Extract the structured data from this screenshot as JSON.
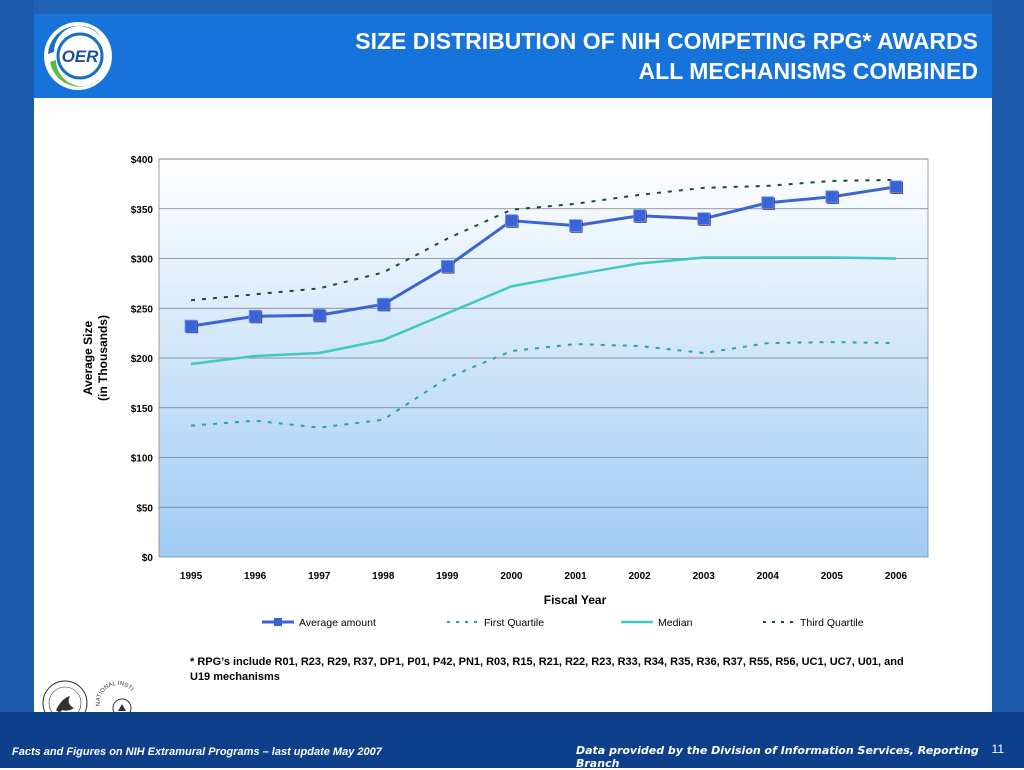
{
  "slide": {
    "title_line1": "SIZE DISTRIBUTION OF NIH COMPETING RPG* AWARDS",
    "title_line2": "ALL MECHANISMS COMBINED",
    "logo_text": "OER",
    "footnote": "* RPG’s include R01, R23, R29, R37, DP1, P01, P42, PN1, R03, R15, R21, R22, R23, R33, R34, R35, R36, R37, R55, R56, UC1, UC7, U01, and U19 mechanisms",
    "footer_left": "Facts and Figures on NIH Extramural Programs – last update May 2007",
    "footer_right": "Data provided by the Division of Information Services, Reporting Branch",
    "page_number": "11",
    "nih_logo_text": "NATIONAL INSTITUTES OF HEALTH"
  },
  "colors": {
    "average": "#3b63d6",
    "first_quartile": "#2a9fb0",
    "median": "#3fc9c0",
    "third_quartile": "#1f4a2a",
    "plot_top": "#ffffff",
    "plot_bottom": "#9fcbf4"
  },
  "chart_data": {
    "type": "line",
    "xlabel": "Fiscal Year",
    "ylabel_line1": "Average Size",
    "ylabel_line2": "(in Thousands)",
    "categories": [
      "1995",
      "1996",
      "1997",
      "1998",
      "1999",
      "2000",
      "2001",
      "2002",
      "2003",
      "2004",
      "2005",
      "2006"
    ],
    "ylim": [
      0,
      400
    ],
    "yticks": [
      0,
      50,
      100,
      150,
      200,
      250,
      300,
      350,
      400
    ],
    "ytick_labels": [
      "$0",
      "$50",
      "$100",
      "$150",
      "$200",
      "$250",
      "$300",
      "$350",
      "$400"
    ],
    "grid": true,
    "legend_position": "bottom",
    "series": [
      {
        "name": "Average amount",
        "values": [
          232,
          242,
          243,
          254,
          292,
          338,
          333,
          343,
          340,
          356,
          362,
          372
        ]
      },
      {
        "name": "First Quartile",
        "values": [
          132,
          137,
          130,
          138,
          180,
          207,
          214,
          212,
          205,
          215,
          216,
          215
        ]
      },
      {
        "name": "Median",
        "values": [
          194,
          202,
          205,
          218,
          245,
          272,
          284,
          295,
          301,
          301,
          301,
          300
        ]
      },
      {
        "name": "Third Quartile",
        "values": [
          258,
          264,
          270,
          286,
          320,
          349,
          355,
          364,
          371,
          373,
          378,
          379
        ]
      }
    ]
  }
}
